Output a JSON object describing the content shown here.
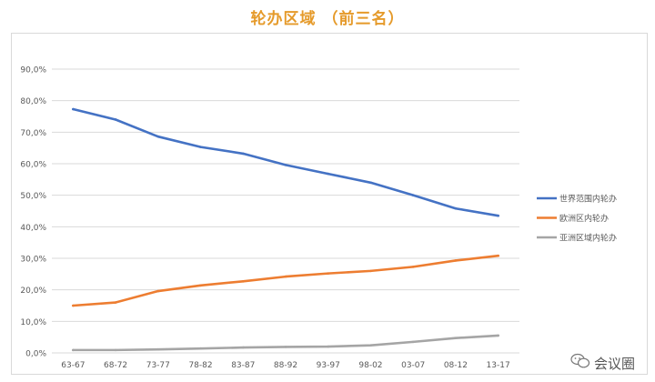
{
  "page": {
    "title": "轮办区域 （前三名）",
    "watermark": "会议圈"
  },
  "chart_data": {
    "type": "line",
    "title": "轮办区域 （前三名）",
    "categories": [
      "63-67",
      "68-72",
      "73-77",
      "78-82",
      "83-87",
      "88-92",
      "93-97",
      "98-02",
      "03-07",
      "08-12",
      "13-17"
    ],
    "ylim": [
      0,
      90
    ],
    "yticks": [
      0,
      10,
      20,
      30,
      40,
      50,
      60,
      70,
      80,
      90
    ],
    "ytick_labels": [
      "0,0%",
      "10,0%",
      "20,0%",
      "30,0%",
      "40,0%",
      "50,0%",
      "60,0%",
      "70,0%",
      "80,0%",
      "90,0%"
    ],
    "grid": true,
    "legend_position": "right",
    "series": [
      {
        "name": "世界范围内轮办",
        "color": "#4472c4",
        "values": [
          77.3,
          74.0,
          68.6,
          65.3,
          63.2,
          59.6,
          56.8,
          54.0,
          50.0,
          45.8,
          43.5
        ]
      },
      {
        "name": "欧洲区内轮办",
        "color": "#ed7d31",
        "values": [
          15.0,
          16.0,
          19.6,
          21.4,
          22.7,
          24.2,
          25.2,
          26.0,
          27.3,
          29.3,
          30.8
        ]
      },
      {
        "name": "亚洲区域内轮办",
        "color": "#a5a5a5",
        "values": [
          0.9,
          0.9,
          1.1,
          1.4,
          1.7,
          1.9,
          2.0,
          2.4,
          3.5,
          4.7,
          5.5
        ]
      }
    ]
  }
}
